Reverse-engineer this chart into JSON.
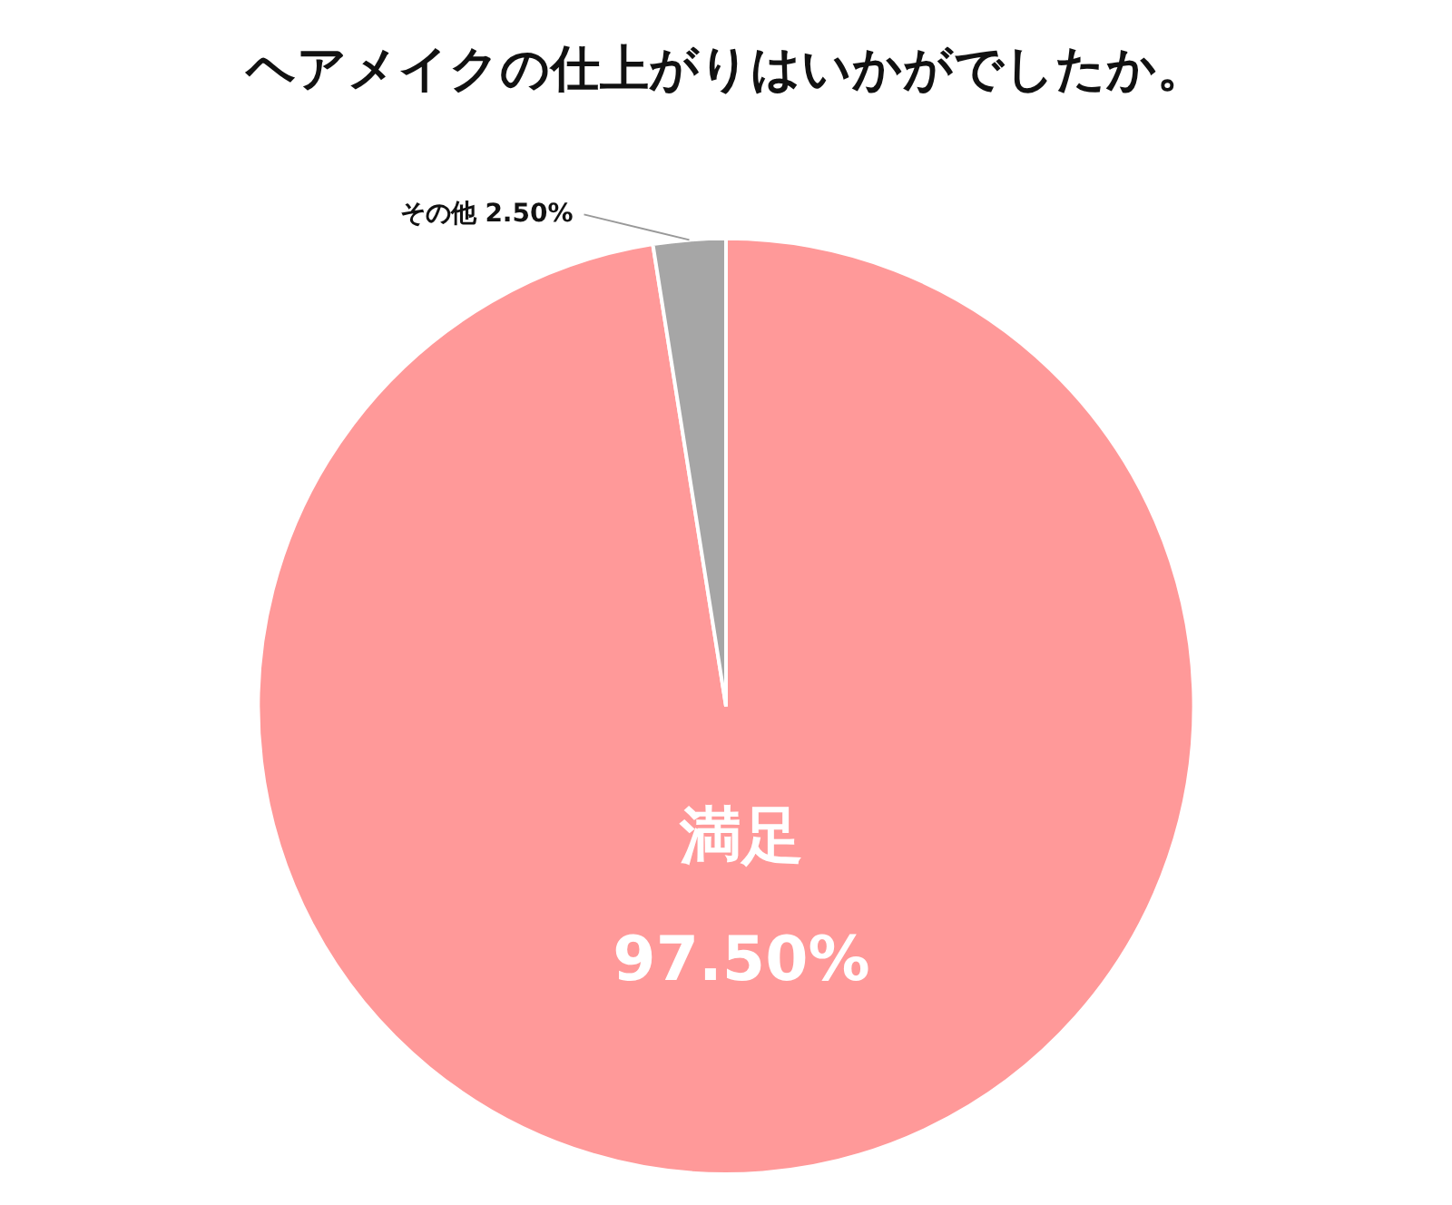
{
  "chart_data": {
    "type": "pie",
    "title": "ヘアメイクの仕上がりはいかがでしたか。",
    "categories": [
      "満足",
      "その他"
    ],
    "values": [
      97.5,
      2.5
    ],
    "colors": [
      "#ff9999",
      "#a6a6a6"
    ],
    "value_labels": [
      "97.50%",
      "2.50%"
    ]
  }
}
